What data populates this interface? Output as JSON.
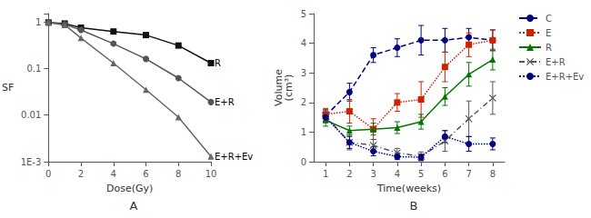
{
  "chart_data": [
    {
      "type": "line",
      "title": "A",
      "x_label": "Dose(Gy)",
      "y_label": "SF",
      "xlim": [
        0,
        10
      ],
      "ylim": [
        0.001,
        1.5
      ],
      "xticks": [
        0,
        2,
        4,
        6,
        8,
        10
      ],
      "yticks": [
        {
          "value": 0.001,
          "label": "1E-3"
        },
        0.01,
        0.1,
        1
      ],
      "log": "y",
      "grid": false,
      "legend": false,
      "series": [
        {
          "name": "R",
          "color": "#111111",
          "marker": "square",
          "line_style": "solid",
          "x": [
            0,
            1,
            2,
            4,
            6,
            8,
            10
          ],
          "values": [
            0.97,
            0.92,
            0.75,
            0.62,
            0.52,
            0.31,
            0.13
          ]
        },
        {
          "name": "E+R",
          "color": "#555555",
          "marker": "circle",
          "line_style": "solid",
          "x": [
            0,
            1,
            2,
            4,
            6,
            8,
            10
          ],
          "values": [
            0.97,
            0.88,
            0.67,
            0.34,
            0.16,
            0.062,
            0.019
          ]
        },
        {
          "name": "E+R+Ev",
          "color": "#666666",
          "marker": "triangle",
          "line_style": "solid",
          "x": [
            0,
            1,
            2,
            4,
            6,
            8,
            10
          ],
          "values": [
            0.97,
            0.86,
            0.45,
            0.13,
            0.035,
            0.009,
            0.0013
          ]
        }
      ]
    },
    {
      "type": "line",
      "title": "B",
      "x_label": "Time(weeks)",
      "y_label": "Volume\n(cm³)",
      "xlim": [
        0.5,
        8.5
      ],
      "ylim": [
        0,
        5
      ],
      "xticks": [
        1,
        2,
        3,
        4,
        5,
        6,
        7,
        8
      ],
      "yticks": [
        0,
        1,
        2,
        3,
        4,
        5
      ],
      "grid": false,
      "legend": "right",
      "series": [
        {
          "name": "C",
          "color": "#000080",
          "marker": "circle",
          "line_style": "dashed",
          "x": [
            1,
            2,
            3,
            4,
            5,
            6,
            7,
            8
          ],
          "values": [
            1.55,
            2.35,
            3.6,
            3.85,
            4.1,
            4.1,
            4.2,
            4.1
          ],
          "yerr": [
            0.2,
            0.3,
            0.25,
            0.3,
            0.5,
            0.4,
            0.3,
            0.35
          ]
        },
        {
          "name": "E",
          "color": "#cc2200",
          "marker": "square",
          "line_style": "dotted",
          "x": [
            1,
            2,
            3,
            4,
            5,
            6,
            7,
            8
          ],
          "values": [
            1.6,
            1.7,
            1.1,
            2.0,
            2.1,
            3.2,
            3.95,
            4.1
          ],
          "yerr": [
            0.2,
            0.4,
            0.35,
            0.3,
            0.6,
            0.5,
            0.4,
            0.35
          ]
        },
        {
          "name": "R",
          "color": "#007700",
          "marker": "triangle",
          "line_style": "solid",
          "x": [
            1,
            2,
            3,
            4,
            5,
            6,
            7,
            8
          ],
          "values": [
            1.4,
            1.05,
            1.1,
            1.15,
            1.35,
            2.2,
            2.95,
            3.45
          ],
          "yerr": [
            0.2,
            0.15,
            0.2,
            0.2,
            0.25,
            0.3,
            0.4,
            0.35
          ]
        },
        {
          "name": "E+R",
          "color": "#555555",
          "marker": "x",
          "line_style": "dashdot",
          "x": [
            1,
            2,
            3,
            4,
            5,
            6,
            7,
            8
          ],
          "values": [
            1.55,
            0.65,
            0.55,
            0.3,
            0.18,
            0.7,
            1.45,
            2.15
          ],
          "yerr": [
            0.2,
            0.25,
            0.2,
            0.15,
            0.15,
            0.35,
            0.6,
            0.55
          ]
        },
        {
          "name": "E+R+Ev",
          "color": "#000080",
          "marker": "circle",
          "line_style": "dotted",
          "x": [
            1,
            2,
            3,
            4,
            5,
            6,
            7,
            8
          ],
          "values": [
            1.5,
            0.65,
            0.35,
            0.17,
            0.15,
            0.85,
            0.6,
            0.6
          ],
          "yerr": [
            0.15,
            0.2,
            0.15,
            0.1,
            0.1,
            0.2,
            0.25,
            0.2
          ]
        }
      ]
    }
  ]
}
